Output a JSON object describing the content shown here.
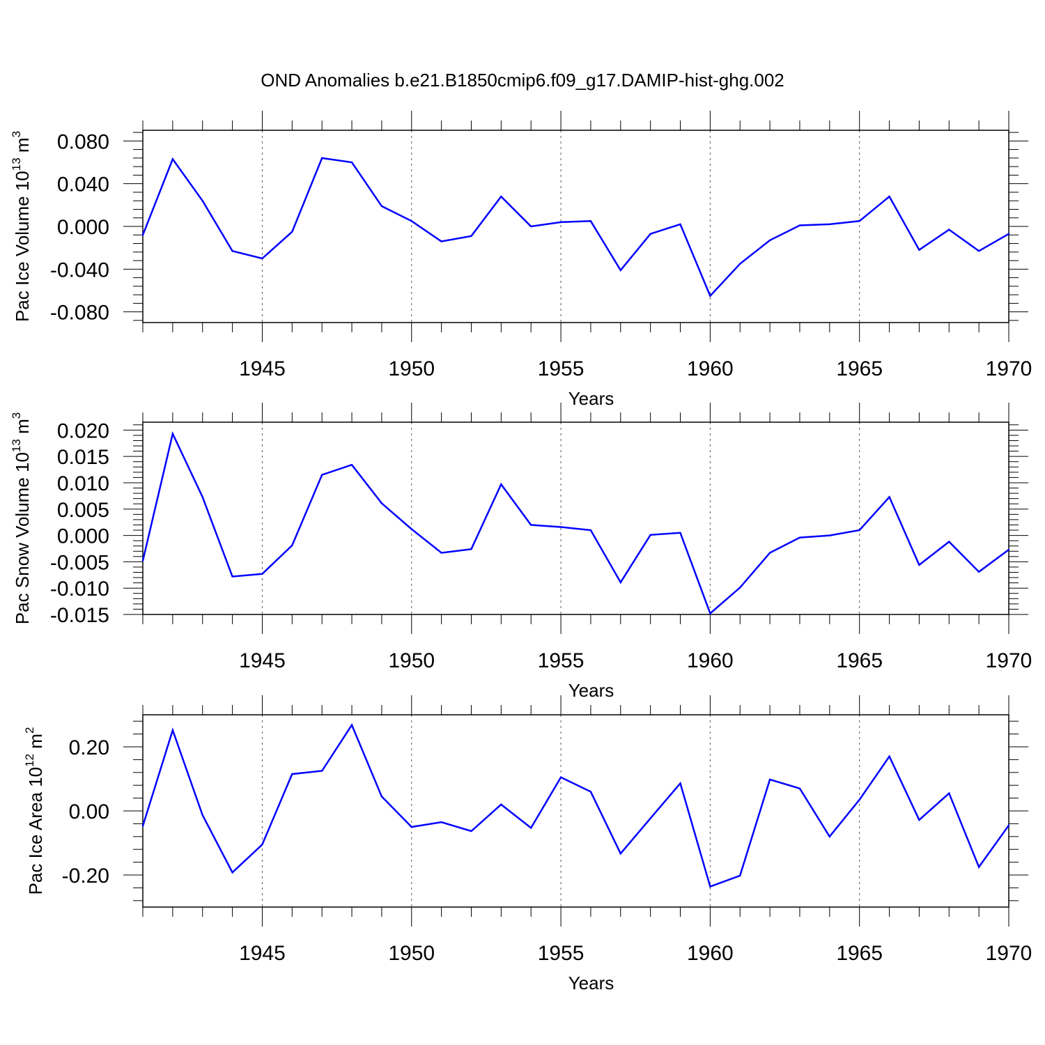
{
  "figure_title": "OND Anomalies b.e21.B1850cmip6.f09_g17.DAMIP-hist-ghg.002",
  "colors": {
    "line": "#0000ff",
    "axis": "#000000",
    "grid": "#555555"
  },
  "chart_data": [
    {
      "type": "line",
      "title": "",
      "xlabel": "Years",
      "ylabel": "Pac Ice Volume 10",
      "ylabel_sup": "13",
      "ylabel_unit": " m",
      "ylabel_unit_sup": "3",
      "xlim": [
        1941,
        1970
      ],
      "ylim": [
        -0.09,
        0.09
      ],
      "xticks": [
        "1945",
        "1950",
        "1955",
        "1960",
        "1965",
        "1970"
      ],
      "yticks": [
        "0.080",
        "0.040",
        "0.000",
        "-0.040",
        "-0.080"
      ],
      "ytick_values": [
        0.08,
        0.04,
        0.0,
        -0.04,
        -0.08
      ],
      "x": [
        1941,
        1942,
        1943,
        1944,
        1945,
        1946,
        1947,
        1948,
        1949,
        1950,
        1951,
        1952,
        1953,
        1954,
        1955,
        1956,
        1957,
        1958,
        1959,
        1960,
        1961,
        1962,
        1963,
        1964,
        1965,
        1966,
        1967,
        1968,
        1969,
        1970
      ],
      "series": [
        {
          "name": "Pac Ice Volume",
          "values": [
            -0.008,
            0.063,
            0.024,
            -0.023,
            -0.03,
            -0.005,
            0.064,
            0.06,
            0.019,
            0.005,
            -0.014,
            -0.009,
            0.028,
            0.0,
            0.004,
            0.005,
            -0.041,
            -0.007,
            0.002,
            -0.065,
            -0.035,
            -0.013,
            0.001,
            0.002,
            0.005,
            0.028,
            -0.022,
            -0.003,
            -0.023,
            -0.007
          ]
        }
      ]
    },
    {
      "type": "line",
      "title": "",
      "xlabel": "Years",
      "ylabel": "Pac Snow Volume 10",
      "ylabel_sup": "13",
      "ylabel_unit": " m",
      "ylabel_unit_sup": "3",
      "xlim": [
        1941,
        1970
      ],
      "ylim": [
        -0.015,
        0.0215
      ],
      "xticks": [
        "1945",
        "1950",
        "1955",
        "1960",
        "1965",
        "1970"
      ],
      "yticks": [
        "0.020",
        "0.015",
        "0.010",
        "0.005",
        "0.000",
        "-0.005",
        "-0.010",
        "-0.015"
      ],
      "ytick_values": [
        0.02,
        0.015,
        0.01,
        0.005,
        0.0,
        -0.005,
        -0.01,
        -0.015
      ],
      "x": [
        1941,
        1942,
        1943,
        1944,
        1945,
        1946,
        1947,
        1948,
        1949,
        1950,
        1951,
        1952,
        1953,
        1954,
        1955,
        1956,
        1957,
        1958,
        1959,
        1960,
        1961,
        1962,
        1963,
        1964,
        1965,
        1966,
        1967,
        1968,
        1969,
        1970
      ],
      "series": [
        {
          "name": "Pac Snow Volume",
          "values": [
            -0.0048,
            0.0193,
            0.0073,
            -0.0078,
            -0.0073,
            -0.0019,
            0.0115,
            0.0134,
            0.0061,
            0.0012,
            -0.0033,
            -0.0026,
            0.0097,
            0.002,
            0.0016,
            0.001,
            -0.0089,
            0.0001,
            0.0005,
            -0.0148,
            -0.0099,
            -0.0033,
            -0.0004,
            0.0,
            0.001,
            0.0073,
            -0.0056,
            -0.0012,
            -0.0069,
            -0.0027
          ]
        }
      ]
    },
    {
      "type": "line",
      "title": "",
      "xlabel": "Years",
      "ylabel": "Pac Ice Area 10",
      "ylabel_sup": "12",
      "ylabel_unit": " m",
      "ylabel_unit_sup": "2",
      "xlim": [
        1941,
        1970
      ],
      "ylim": [
        -0.3,
        0.3
      ],
      "xticks": [
        "1945",
        "1950",
        "1955",
        "1960",
        "1965",
        "1970"
      ],
      "yticks": [
        "0.20",
        "0.00",
        "-0.20"
      ],
      "ytick_values": [
        0.2,
        0.0,
        -0.2
      ],
      "x": [
        1941,
        1942,
        1943,
        1944,
        1945,
        1946,
        1947,
        1948,
        1949,
        1950,
        1951,
        1952,
        1953,
        1954,
        1955,
        1956,
        1957,
        1958,
        1959,
        1960,
        1961,
        1962,
        1963,
        1964,
        1965,
        1966,
        1967,
        1968,
        1969,
        1970
      ],
      "series": [
        {
          "name": "Pac Ice Area",
          "values": [
            -0.047,
            0.252,
            -0.013,
            -0.192,
            -0.105,
            0.115,
            0.125,
            0.268,
            0.045,
            -0.05,
            -0.035,
            -0.063,
            0.02,
            -0.053,
            0.105,
            0.06,
            -0.133,
            -0.023,
            0.086,
            -0.236,
            -0.202,
            0.098,
            0.07,
            -0.08,
            0.035,
            0.17,
            -0.028,
            0.055,
            -0.175,
            -0.045
          ]
        }
      ]
    }
  ]
}
